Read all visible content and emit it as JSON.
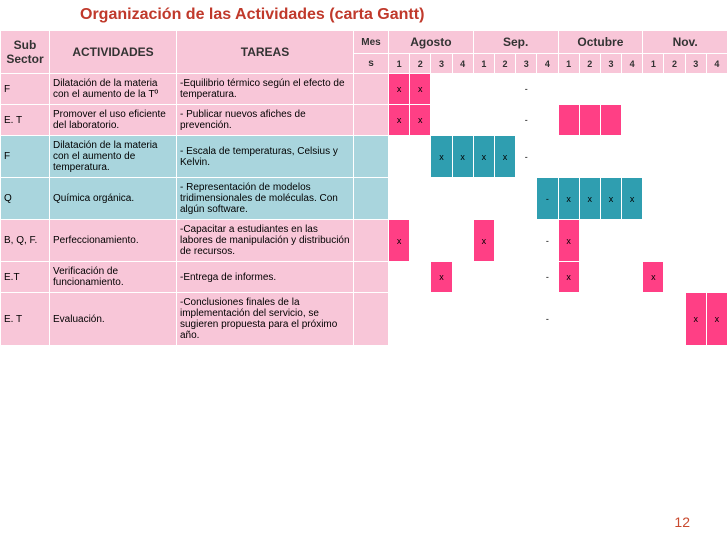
{
  "title": "Organización de las Actividades (carta Gantt)",
  "page_number": "12",
  "colors": {
    "header_pink": "#f8c6d8",
    "row_pink": "#f8c6d8",
    "row_blue": "#a9d5dd",
    "fill_pink": "#ff3f85",
    "fill_blue": "#2f9eb0",
    "title": "#c0392b",
    "border": "#ffffff"
  },
  "typography": {
    "title_fontsize": 16,
    "header_fontsize": 12,
    "cell_fontsize": 10,
    "family": "Arial"
  },
  "headers": {
    "sub": "Sub Sector",
    "act": "ACTIVIDADES",
    "tar": "TAREAS",
    "mes_top": "Mes",
    "mes_sub": "s",
    "months": [
      "Agosto",
      "Sep.",
      "Octubre",
      "Nov."
    ],
    "weeks": [
      "1",
      "2",
      "3",
      "4",
      "1",
      "2",
      "3",
      "4",
      "1",
      "2",
      "3",
      "4",
      "1",
      "2",
      "3",
      "4"
    ]
  },
  "rows": [
    {
      "sub": "F",
      "act": "Dilatación de la materia con el aumento de la Tº",
      "tar": "-Equilibrio térmico según el efecto de temperatura.",
      "color": "pink",
      "cells": [
        {
          "f": 1,
          "t": "x"
        },
        {
          "f": 1,
          "t": "x"
        },
        {
          "f": 0,
          "t": ""
        },
        {
          "f": 0,
          "t": ""
        },
        {
          "f": 0,
          "t": ""
        },
        {
          "f": 0,
          "t": ""
        },
        {
          "f": 0,
          "t": "-"
        },
        {
          "f": 0,
          "t": ""
        },
        {
          "f": 0,
          "t": ""
        },
        {
          "f": 0,
          "t": ""
        },
        {
          "f": 0,
          "t": ""
        },
        {
          "f": 0,
          "t": ""
        },
        {
          "f": 0,
          "t": ""
        },
        {
          "f": 0,
          "t": ""
        },
        {
          "f": 0,
          "t": ""
        },
        {
          "f": 0,
          "t": ""
        }
      ]
    },
    {
      "sub": "E. T",
      "act": "Promover el uso eficiente del laboratorio.",
      "tar": "- Publicar nuevos afiches de prevención.",
      "color": "pink",
      "cells": [
        {
          "f": 1,
          "t": "x"
        },
        {
          "f": 1,
          "t": "x"
        },
        {
          "f": 0,
          "t": ""
        },
        {
          "f": 0,
          "t": ""
        },
        {
          "f": 0,
          "t": ""
        },
        {
          "f": 0,
          "t": ""
        },
        {
          "f": 0,
          "t": "-"
        },
        {
          "f": 0,
          "t": ""
        },
        {
          "f": 1,
          "t": ""
        },
        {
          "f": 1,
          "t": ""
        },
        {
          "f": 1,
          "t": ""
        },
        {
          "f": 0,
          "t": ""
        },
        {
          "f": 0,
          "t": ""
        },
        {
          "f": 0,
          "t": ""
        },
        {
          "f": 0,
          "t": ""
        },
        {
          "f": 0,
          "t": ""
        }
      ]
    },
    {
      "sub": "F",
      "act": "Dilatación de la materia con el aumento de temperatura.",
      "tar": "- Escala de temperaturas, Celsius y Kelvin.",
      "color": "blue",
      "cells": [
        {
          "f": 0,
          "t": ""
        },
        {
          "f": 0,
          "t": ""
        },
        {
          "f": 1,
          "t": "x"
        },
        {
          "f": 1,
          "t": "x"
        },
        {
          "f": 1,
          "t": "x"
        },
        {
          "f": 1,
          "t": "x"
        },
        {
          "f": 0,
          "t": "-"
        },
        {
          "f": 0,
          "t": ""
        },
        {
          "f": 0,
          "t": ""
        },
        {
          "f": 0,
          "t": ""
        },
        {
          "f": 0,
          "t": ""
        },
        {
          "f": 0,
          "t": ""
        },
        {
          "f": 0,
          "t": ""
        },
        {
          "f": 0,
          "t": ""
        },
        {
          "f": 0,
          "t": ""
        },
        {
          "f": 0,
          "t": ""
        }
      ]
    },
    {
      "sub": "Q",
      "act": "Química orgánica.",
      "tar": "- Representación de modelos tridimensionales de moléculas. Con algún software.",
      "color": "blue",
      "cells": [
        {
          "f": 0,
          "t": ""
        },
        {
          "f": 0,
          "t": ""
        },
        {
          "f": 0,
          "t": ""
        },
        {
          "f": 0,
          "t": ""
        },
        {
          "f": 0,
          "t": ""
        },
        {
          "f": 0,
          "t": ""
        },
        {
          "f": 0,
          "t": ""
        },
        {
          "f": 1,
          "t": "-"
        },
        {
          "f": 1,
          "t": "x"
        },
        {
          "f": 1,
          "t": "x"
        },
        {
          "f": 1,
          "t": "x"
        },
        {
          "f": 1,
          "t": "x"
        },
        {
          "f": 0,
          "t": ""
        },
        {
          "f": 0,
          "t": ""
        },
        {
          "f": 0,
          "t": ""
        },
        {
          "f": 0,
          "t": ""
        }
      ]
    },
    {
      "sub": "B, Q, F.",
      "act": "Perfeccionamiento.",
      "tar": "-Capacitar a estudiantes en las labores de manipulación y distribución de recursos.",
      "color": "pink",
      "cells": [
        {
          "f": 1,
          "t": "x"
        },
        {
          "f": 0,
          "t": ""
        },
        {
          "f": 0,
          "t": ""
        },
        {
          "f": 0,
          "t": ""
        },
        {
          "f": 1,
          "t": "x"
        },
        {
          "f": 0,
          "t": ""
        },
        {
          "f": 0,
          "t": ""
        },
        {
          "f": 0,
          "t": "-"
        },
        {
          "f": 1,
          "t": "x"
        },
        {
          "f": 0,
          "t": ""
        },
        {
          "f": 0,
          "t": ""
        },
        {
          "f": 0,
          "t": ""
        },
        {
          "f": 0,
          "t": ""
        },
        {
          "f": 0,
          "t": ""
        },
        {
          "f": 0,
          "t": ""
        },
        {
          "f": 0,
          "t": ""
        }
      ]
    },
    {
      "sub": "E.T",
      "act": "Verificación de funcionamiento.",
      "tar": "-Entrega de informes.",
      "color": "pink",
      "cells": [
        {
          "f": 0,
          "t": ""
        },
        {
          "f": 0,
          "t": ""
        },
        {
          "f": 1,
          "t": "x"
        },
        {
          "f": 0,
          "t": ""
        },
        {
          "f": 0,
          "t": ""
        },
        {
          "f": 0,
          "t": ""
        },
        {
          "f": 0,
          "t": ""
        },
        {
          "f": 0,
          "t": "-"
        },
        {
          "f": 1,
          "t": "x"
        },
        {
          "f": 0,
          "t": ""
        },
        {
          "f": 0,
          "t": ""
        },
        {
          "f": 0,
          "t": ""
        },
        {
          "f": 1,
          "t": "x"
        },
        {
          "f": 0,
          "t": ""
        },
        {
          "f": 0,
          "t": ""
        },
        {
          "f": 0,
          "t": ""
        }
      ]
    },
    {
      "sub": "E. T",
      "act": "Evaluación.",
      "tar": "-Conclusiones finales de la implementación del servicio, se sugieren propuesta para el próximo año.",
      "color": "pink",
      "cells": [
        {
          "f": 0,
          "t": ""
        },
        {
          "f": 0,
          "t": ""
        },
        {
          "f": 0,
          "t": ""
        },
        {
          "f": 0,
          "t": ""
        },
        {
          "f": 0,
          "t": ""
        },
        {
          "f": 0,
          "t": ""
        },
        {
          "f": 0,
          "t": ""
        },
        {
          "f": 0,
          "t": "-"
        },
        {
          "f": 0,
          "t": ""
        },
        {
          "f": 0,
          "t": ""
        },
        {
          "f": 0,
          "t": ""
        },
        {
          "f": 0,
          "t": ""
        },
        {
          "f": 0,
          "t": ""
        },
        {
          "f": 0,
          "t": ""
        },
        {
          "f": 1,
          "t": "x"
        },
        {
          "f": 1,
          "t": "x"
        }
      ]
    }
  ]
}
